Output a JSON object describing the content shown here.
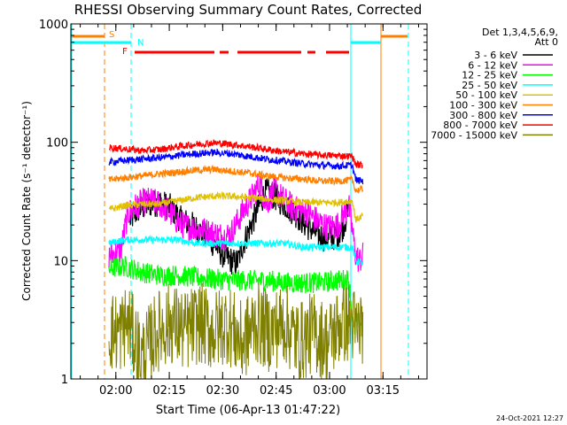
{
  "chart_data": {
    "type": "line",
    "title": "RHESSI Observing Summary Count Rates, Corrected",
    "xlabel": "Start Time (06-Apr-13 01:47:22)",
    "ylabel": "Corrected Count Rate (s⁻¹ detector⁻¹)",
    "y_scale": "log",
    "ylim": [
      1,
      1000
    ],
    "xlim_minutes_after_01_47_22": [
      0,
      100
    ],
    "x_ticks": [
      {
        "label": "02:00",
        "t": 12.63
      },
      {
        "label": "02:15",
        "t": 27.63
      },
      {
        "label": "02:30",
        "t": 42.63
      },
      {
        "label": "02:45",
        "t": 57.63
      },
      {
        "label": "03:00",
        "t": 72.63
      },
      {
        "label": "03:15",
        "t": 87.63
      }
    ],
    "y_ticks": [
      {
        "label": "1",
        "v": 1
      },
      {
        "label": "10",
        "v": 10
      },
      {
        "label": "100",
        "v": 100
      },
      {
        "label": "1000",
        "v": 1000
      }
    ],
    "legend_header": [
      "Det 1,3,4,5,6,9,",
      "Att 0"
    ],
    "timestamp": "24-Oct-2021 12:27",
    "series": [
      {
        "name": "3 - 6 keV",
        "color": "#000000",
        "points": [
          [
            16.6,
            22
          ],
          [
            19,
            27
          ],
          [
            22,
            30
          ],
          [
            25,
            31
          ],
          [
            28,
            28
          ],
          [
            31,
            22
          ],
          [
            34,
            20
          ],
          [
            37,
            17
          ],
          [
            40,
            14
          ],
          [
            43,
            11
          ],
          [
            45,
            10
          ],
          [
            46,
            9.5
          ],
          [
            47,
            10
          ],
          [
            48,
            13
          ],
          [
            50,
            18
          ],
          [
            52,
            25
          ],
          [
            54,
            35
          ],
          [
            55,
            38
          ],
          [
            57,
            35
          ],
          [
            60,
            30
          ],
          [
            63,
            25
          ],
          [
            66,
            20
          ],
          [
            69,
            17
          ],
          [
            72,
            15
          ],
          [
            74,
            16
          ],
          [
            76,
            18
          ],
          [
            77,
            22
          ],
          [
            78,
            25
          ]
        ]
      },
      {
        "name": "6 - 12 keV",
        "color": "#ff00ff",
        "points": [
          [
            10.7,
            11
          ],
          [
            12,
            11.5
          ],
          [
            14,
            12
          ],
          [
            16,
            25
          ],
          [
            19,
            30
          ],
          [
            22,
            32
          ],
          [
            25,
            30
          ],
          [
            28,
            25
          ],
          [
            31,
            20
          ],
          [
            34,
            19
          ],
          [
            37,
            18
          ],
          [
            40,
            17
          ],
          [
            43,
            16
          ],
          [
            45,
            17
          ],
          [
            48,
            25
          ],
          [
            51,
            35
          ],
          [
            53,
            45
          ],
          [
            55,
            30
          ],
          [
            57,
            40
          ],
          [
            60,
            32
          ],
          [
            63,
            27
          ],
          [
            66,
            26
          ],
          [
            69,
            22
          ],
          [
            72,
            19
          ],
          [
            75,
            20
          ],
          [
            77,
            26
          ],
          [
            78,
            30
          ],
          [
            80,
            11
          ],
          [
            81,
            10
          ],
          [
            82,
            11
          ]
        ]
      },
      {
        "name": "12 - 25 keV",
        "color": "#00ff00",
        "points": [
          [
            10.7,
            8.5
          ],
          [
            15,
            9
          ],
          [
            20,
            8
          ],
          [
            25,
            7.5
          ],
          [
            30,
            7.5
          ],
          [
            35,
            7.2
          ],
          [
            40,
            7
          ],
          [
            45,
            6.8
          ],
          [
            50,
            6.8
          ],
          [
            55,
            6.8
          ],
          [
            60,
            6.5
          ],
          [
            65,
            6.5
          ],
          [
            70,
            6.5
          ],
          [
            75,
            6.8
          ],
          [
            78,
            7
          ],
          [
            79.5,
            2.5
          ],
          [
            80,
            3
          ],
          [
            82,
            3
          ]
        ]
      },
      {
        "name": "25 - 50 keV",
        "color": "#00ffff",
        "points": [
          [
            10.7,
            14
          ],
          [
            15,
            15
          ],
          [
            20,
            15
          ],
          [
            25,
            15
          ],
          [
            30,
            15
          ],
          [
            35,
            14
          ],
          [
            40,
            14
          ],
          [
            45,
            14
          ],
          [
            50,
            14
          ],
          [
            55,
            14
          ],
          [
            60,
            14
          ],
          [
            65,
            13
          ],
          [
            70,
            13
          ],
          [
            75,
            13
          ],
          [
            79,
            13
          ],
          [
            80,
            10
          ],
          [
            82,
            9.5
          ]
        ]
      },
      {
        "name": "50 - 100 keV",
        "color": "#e0c000",
        "points": [
          [
            10.7,
            27
          ],
          [
            15,
            29
          ],
          [
            20,
            30
          ],
          [
            25,
            30
          ],
          [
            30,
            32
          ],
          [
            35,
            34
          ],
          [
            40,
            35
          ],
          [
            45,
            35
          ],
          [
            50,
            34
          ],
          [
            55,
            33
          ],
          [
            60,
            32
          ],
          [
            65,
            31
          ],
          [
            70,
            31
          ],
          [
            75,
            31
          ],
          [
            79,
            32
          ],
          [
            80,
            22
          ],
          [
            82,
            24
          ]
        ]
      },
      {
        "name": "100 - 300 keV",
        "color": "#ff7f00",
        "points": [
          [
            10.7,
            48
          ],
          [
            15,
            50
          ],
          [
            20,
            52
          ],
          [
            25,
            54
          ],
          [
            30,
            56
          ],
          [
            35,
            58
          ],
          [
            40,
            59
          ],
          [
            45,
            57
          ],
          [
            50,
            55
          ],
          [
            55,
            52
          ],
          [
            60,
            50
          ],
          [
            65,
            49
          ],
          [
            70,
            47
          ],
          [
            75,
            47
          ],
          [
            79,
            48
          ],
          [
            80,
            39
          ],
          [
            82,
            40
          ]
        ]
      },
      {
        "name": "300 - 800 keV",
        "color": "#0000ff",
        "points": [
          [
            10.7,
            68
          ],
          [
            15,
            70
          ],
          [
            20,
            72
          ],
          [
            25,
            74
          ],
          [
            30,
            77
          ],
          [
            35,
            80
          ],
          [
            40,
            82
          ],
          [
            45,
            80
          ],
          [
            50,
            76
          ],
          [
            55,
            72
          ],
          [
            60,
            69
          ],
          [
            65,
            66
          ],
          [
            70,
            64
          ],
          [
            75,
            63
          ],
          [
            79,
            64
          ],
          [
            80,
            48
          ],
          [
            82,
            47
          ]
        ]
      },
      {
        "name": "800 - 7000 keV",
        "color": "#ff0000",
        "points": [
          [
            10.7,
            90
          ],
          [
            15,
            88
          ],
          [
            20,
            85
          ],
          [
            25,
            87
          ],
          [
            30,
            92
          ],
          [
            35,
            96
          ],
          [
            40,
            99
          ],
          [
            45,
            96
          ],
          [
            50,
            92
          ],
          [
            55,
            87
          ],
          [
            60,
            83
          ],
          [
            65,
            80
          ],
          [
            70,
            78
          ],
          [
            75,
            77
          ],
          [
            79,
            76
          ],
          [
            80,
            65
          ],
          [
            82,
            64
          ]
        ]
      },
      {
        "name": "7000 - 15000 keV",
        "color": "#808000",
        "points": [
          [
            10.7,
            2.5
          ],
          [
            14,
            2.5
          ],
          [
            16,
            3
          ],
          [
            20,
            1.5
          ],
          [
            24,
            2.5
          ],
          [
            28,
            3
          ],
          [
            32,
            2.5
          ],
          [
            36,
            3
          ],
          [
            40,
            2.5
          ],
          [
            44,
            3
          ],
          [
            48,
            2
          ],
          [
            52,
            3
          ],
          [
            56,
            2.5
          ],
          [
            60,
            3
          ],
          [
            64,
            2
          ],
          [
            68,
            2.5
          ],
          [
            72,
            2
          ],
          [
            76,
            3
          ],
          [
            79,
            3
          ],
          [
            80,
            2.5
          ],
          [
            82,
            3
          ]
        ]
      }
    ],
    "flags": [
      {
        "name": "S",
        "color": "#ff7f00"
      },
      {
        "name": "N",
        "color": "#00ffff"
      },
      {
        "name": "F",
        "color": "#ff0000"
      }
    ]
  }
}
